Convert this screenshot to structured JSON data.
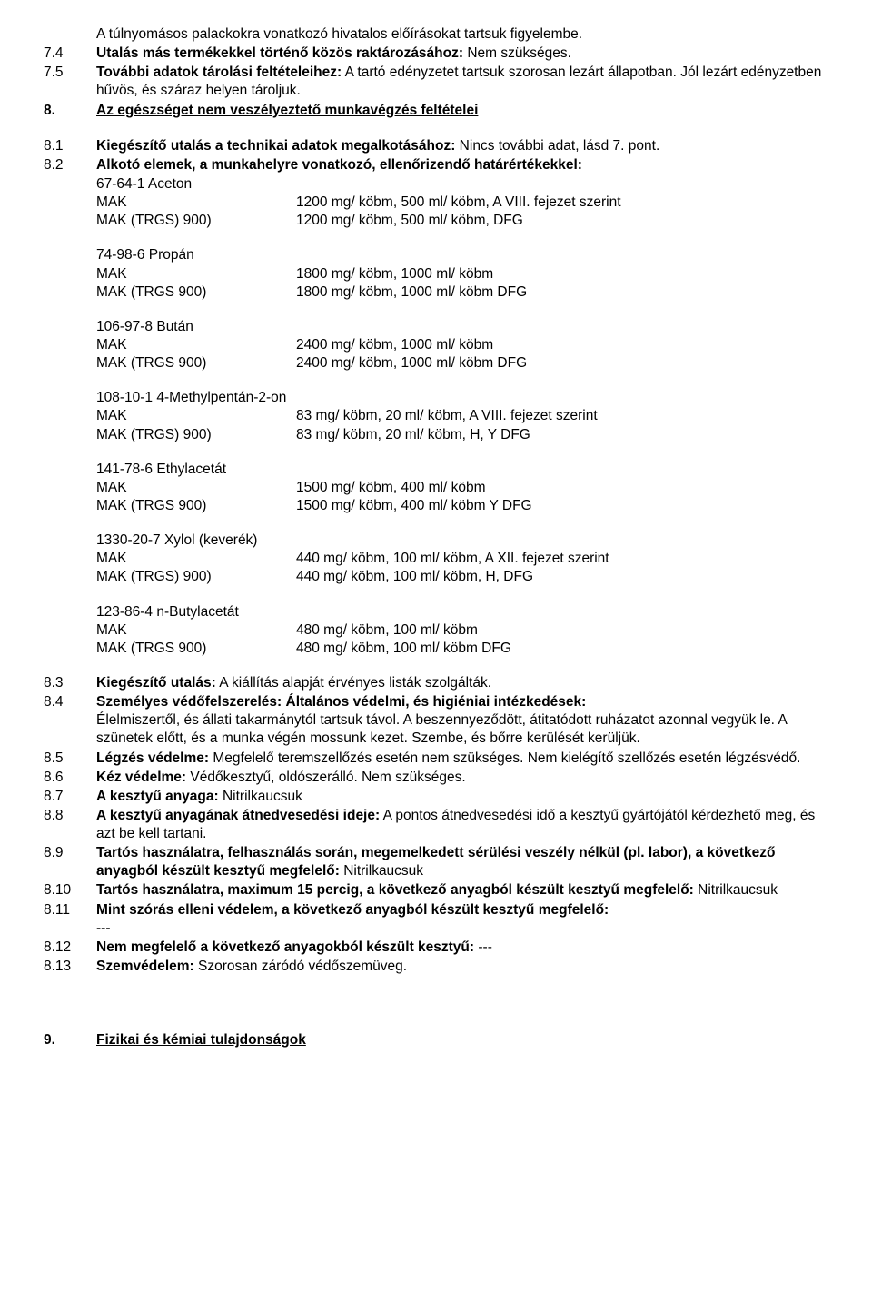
{
  "intro": "A túlnyomásos palackokra vonatkozó hivatalos előírásokat tartsuk figyelembe.",
  "s7_4": {
    "num": "7.4",
    "label": "Utalás más termékekkel történő közös raktározásához:",
    "val": " Nem szükséges."
  },
  "s7_5": {
    "num": "7.5",
    "label": "További adatok tárolási feltételeihez:",
    "val": " A tartó edényzetet tartsuk szorosan lezárt állapotban. Jól lezárt edényzetben hűvös, és száraz helyen tároljuk."
  },
  "s8_h": {
    "num": "8.",
    "title": "Az egészséget nem veszélyeztető munkavégzés feltételei"
  },
  "s8_1": {
    "num": "8.1",
    "label": "Kiegészítő utalás a technikai adatok megalkotásához:",
    "val": " Nincs további adat, lásd 7. pont."
  },
  "s8_2": {
    "num": "8.2",
    "label": "Alkotó elemek, a munkahelyre vonatkozó, ellenőrizendő határértékekkel:"
  },
  "subs": [
    {
      "name": "67-64-1 Aceton",
      "rows": [
        {
          "k": "MAK",
          "v": "1200 mg/ köbm, 500 ml/ köbm, A VIII. fejezet szerint"
        },
        {
          "k": "MAK (TRGS) 900)",
          "v": "1200 mg/ köbm, 500 ml/ köbm, DFG"
        }
      ]
    },
    {
      "name": "74-98-6 Propán",
      "rows": [
        {
          "k": "MAK",
          "v": "1800 mg/ köbm, 1000 ml/ köbm"
        },
        {
          "k": "MAK (TRGS 900)",
          "v": "1800 mg/ köbm, 1000 ml/ köbm DFG"
        }
      ]
    },
    {
      "name": "106-97-8 Bután",
      "rows": [
        {
          "k": "MAK",
          "v": "2400 mg/ köbm, 1000 ml/ köbm"
        },
        {
          "k": "MAK (TRGS 900)",
          "v": "2400 mg/ köbm, 1000 ml/ köbm DFG"
        }
      ]
    },
    {
      "name": "108-10-1 4-Methylpentán-2-on",
      "rows": [
        {
          "k": "MAK",
          "v": "83 mg/ köbm, 20 ml/ köbm, A VIII. fejezet szerint"
        },
        {
          "k": "MAK (TRGS) 900)",
          "v": "83 mg/ köbm, 20 ml/ köbm, H, Y DFG"
        }
      ]
    },
    {
      "name": "141-78-6 Ethylacetát",
      "rows": [
        {
          "k": "MAK",
          "v": "1500 mg/ köbm, 400 ml/ köbm"
        },
        {
          "k": "MAK (TRGS 900)",
          "v": "1500 mg/ köbm, 400 ml/ köbm  Y DFG"
        }
      ]
    },
    {
      "name": "1330-20-7 Xylol (keverék)",
      "rows": [
        {
          "k": "MAK",
          "v": "440 mg/ köbm, 100 ml/ köbm, A XII. fejezet szerint"
        },
        {
          "k": "MAK (TRGS) 900)",
          "v": "440 mg/ köbm, 100 ml/ köbm, H,  DFG"
        }
      ]
    },
    {
      "name": "123-86-4 n-Butylacetát",
      "rows": [
        {
          "k": "MAK",
          "v": "480 mg/ köbm, 100 ml/ köbm"
        },
        {
          "k": "MAK (TRGS 900)",
          "v": "480 mg/ köbm, 100 ml/ köbm   DFG"
        }
      ]
    }
  ],
  "s8_3": {
    "num": "8.3",
    "label": "Kiegészítő utalás:",
    "val": " A kiállítás alapját érvényes listák szolgálták."
  },
  "s8_4": {
    "num": "8.4",
    "label": "Személyes védőfelszerelés: Általános védelmi, és higiéniai intézkedések:",
    "val": "Élelmiszertől, és állati takarmánytól tartsuk távol. A beszennyeződött, átitatódott ruházatot azonnal vegyük le. A szünetek előtt, és a munka végén mossunk kezet. Szembe, és bőrre kerülését kerüljük."
  },
  "s8_5": {
    "num": "8.5",
    "label": "Légzés védelme:",
    "val": " Megfelelő teremszellőzés esetén nem szükséges. Nem kielégítő szellőzés esetén légzésvédő."
  },
  "s8_6": {
    "num": "8.6",
    "label": "Kéz védelme:",
    "val": " Védőkesztyű, oldószerálló. Nem szükséges."
  },
  "s8_7": {
    "num": "8.7",
    "label": "A kesztyű anyaga:",
    "val": " Nitrilkaucsuk"
  },
  "s8_8": {
    "num": "8.8",
    "label": "A kesztyű anyagának átnedvesedési ideje:",
    "val": " A pontos átnedvesedési idő a kesztyű gyártójától kérdezhető meg, és azt be kell tartani."
  },
  "s8_9": {
    "num": "8.9",
    "label": "Tartós használatra, felhasználás során, megemelkedett sérülési veszély nélkül (pl. labor),  a következő anyagból készült kesztyű megfelelő:",
    "val": " Nitrilkaucsuk"
  },
  "s8_10": {
    "num": "8.10",
    "label": "Tartós használatra, maximum 15 percig,  a következő anyagból készült kesztyű megfelelő:",
    "val": " Nitrilkaucsuk"
  },
  "s8_11": {
    "num": "8.11",
    "label": "Mint szórás elleni védelem, a következő anyagból készült kesztyű megfelelő:",
    "val": "---"
  },
  "s8_12": {
    "num": "8.12",
    "label": "Nem megfelelő a következő anyagokból készült kesztyű:",
    "val": " ---"
  },
  "s8_13": {
    "num": "8.13",
    "label": "Szemvédelem:",
    "val": " Szorosan záródó védőszemüveg."
  },
  "s9_h": {
    "num": "9.",
    "title": "Fizikai és kémiai tulajdonságok"
  }
}
